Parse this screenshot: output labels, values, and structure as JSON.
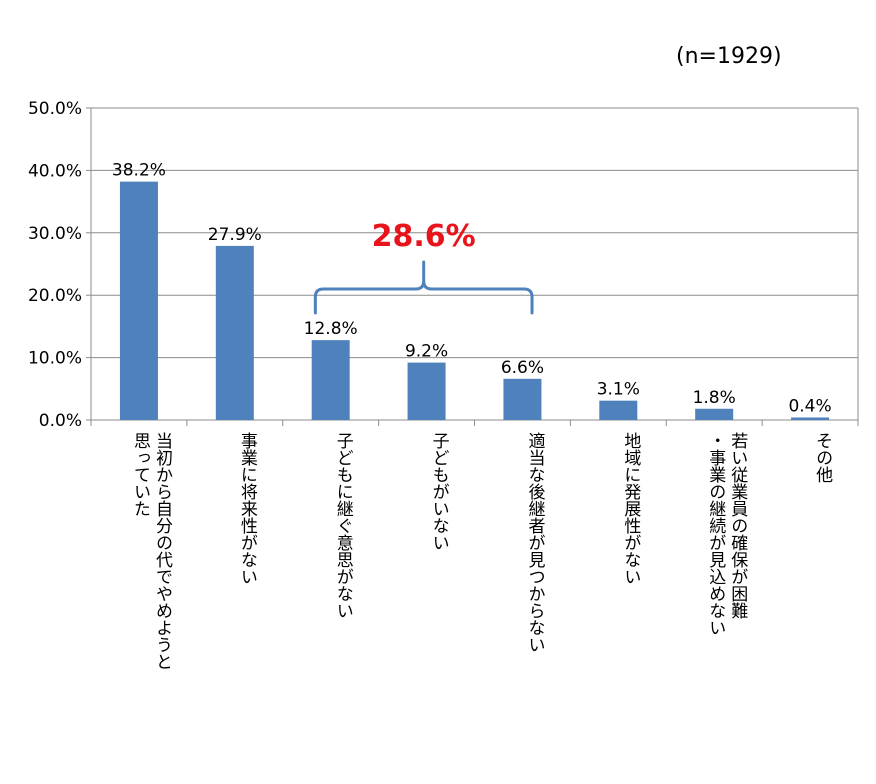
{
  "note": "(n=1929)",
  "chart_data": {
    "type": "bar",
    "categories": [
      [
        "当初から自分の代でやめようと",
        "思っていた"
      ],
      [
        "事業に将来性がない"
      ],
      [
        "子どもに継ぐ意思がない"
      ],
      [
        "子どもがいない"
      ],
      [
        "適当な後継者が見つからない"
      ],
      [
        "地域に発展性がない"
      ],
      [
        "若い従業員の確保が困難",
        "・事業の継続が見込めない"
      ],
      [
        "その他"
      ]
    ],
    "values": [
      38.2,
      27.9,
      12.8,
      9.2,
      6.6,
      3.1,
      1.8,
      0.4
    ],
    "value_labels": [
      "38.2%",
      "27.9%",
      "12.8%",
      "9.2%",
      "6.6%",
      "3.1%",
      "1.8%",
      "0.4%"
    ],
    "ylim": [
      0,
      50
    ],
    "yticks": [
      0,
      10,
      20,
      30,
      40,
      50
    ],
    "ytick_labels": [
      "0.0%",
      "10.0%",
      "20.0%",
      "30.0%",
      "40.0%",
      "50.0%"
    ],
    "grid": true,
    "bar_color": "#4f81bd",
    "bracket": {
      "label": "28.6%",
      "from_index": 2,
      "to_index": 4,
      "color": "#e8141b",
      "line_color": "#4f81bd"
    }
  }
}
